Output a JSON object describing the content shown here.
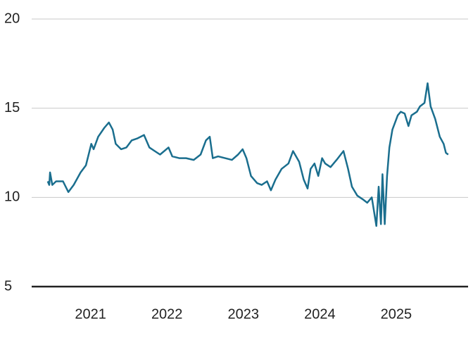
{
  "chart_data": {
    "type": "line",
    "color": "#1a6e8e",
    "grid": true,
    "xlim": [
      2020.23,
      2025.94
    ],
    "xticks": [
      2021,
      2022,
      2023,
      2024,
      2025
    ],
    "ylim": [
      5,
      20
    ],
    "yticks": [
      5,
      10,
      15,
      20
    ],
    "x": [
      2020.44,
      2020.46,
      2020.47,
      2020.5,
      2020.55,
      2020.64,
      2020.71,
      2020.78,
      2020.87,
      2020.94,
      2021.01,
      2021.04,
      2021.1,
      2021.18,
      2021.24,
      2021.29,
      2021.33,
      2021.4,
      2021.47,
      2021.54,
      2021.61,
      2021.7,
      2021.77,
      2021.84,
      2021.91,
      2022.02,
      2022.07,
      2022.16,
      2022.25,
      2022.35,
      2022.44,
      2022.51,
      2022.56,
      2022.6,
      2022.67,
      2022.76,
      2022.85,
      2022.93,
      2022.99,
      2023.04,
      2023.1,
      2023.18,
      2023.24,
      2023.31,
      2023.36,
      2023.42,
      2023.5,
      2023.59,
      2023.65,
      2023.73,
      2023.79,
      2023.84,
      2023.88,
      2023.93,
      2023.98,
      2024.03,
      2024.07,
      2024.14,
      2024.22,
      2024.31,
      2024.37,
      2024.42,
      2024.49,
      2024.56,
      2024.62,
      2024.68,
      2024.74,
      2024.77,
      2024.8,
      2024.82,
      2024.85,
      2024.88,
      2024.91,
      2024.95,
      2025.02,
      2025.06,
      2025.11,
      2025.16,
      2025.2,
      2025.27,
      2025.31,
      2025.37,
      2025.41,
      2025.45,
      2025.51,
      2025.57,
      2025.62,
      2025.65,
      2025.68
    ],
    "values": [
      10.9,
      10.7,
      11.4,
      10.7,
      10.9,
      10.9,
      10.3,
      10.7,
      11.4,
      11.8,
      13.0,
      12.7,
      13.4,
      13.9,
      14.2,
      13.8,
      13.0,
      12.7,
      12.8,
      13.2,
      13.3,
      13.5,
      12.8,
      12.6,
      12.4,
      12.8,
      12.3,
      12.2,
      12.2,
      12.1,
      12.4,
      13.2,
      13.4,
      12.2,
      12.3,
      12.2,
      12.1,
      12.4,
      12.7,
      12.2,
      11.2,
      10.8,
      10.7,
      10.9,
      10.4,
      11.0,
      11.6,
      11.9,
      12.6,
      12.0,
      11.0,
      10.5,
      11.6,
      11.9,
      11.2,
      12.2,
      11.9,
      11.7,
      12.1,
      12.6,
      11.6,
      10.6,
      10.1,
      9.9,
      9.7,
      10.0,
      8.4,
      10.6,
      8.5,
      11.3,
      8.5,
      11.2,
      12.8,
      13.8,
      14.6,
      14.8,
      14.7,
      14.0,
      14.6,
      14.8,
      15.1,
      15.3,
      16.4,
      15.1,
      14.4,
      13.4,
      13.0,
      12.5,
      12.4
    ]
  }
}
